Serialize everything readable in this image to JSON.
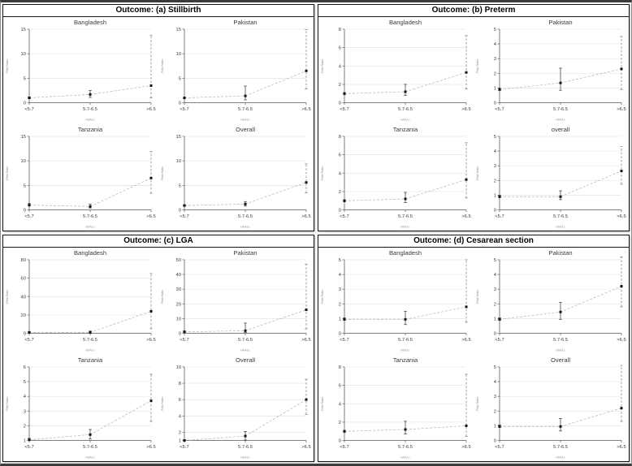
{
  "chart_data": {
    "type": "line",
    "xlabel": "HbA1c",
    "ylabel": "Risk Ratio",
    "x_categories": [
      "<5.7",
      "5.7-6.5",
      ">6.5"
    ],
    "legend": "none",
    "grid": "horizontal",
    "colors": {
      "grid": "#e4e4e4",
      "axis": "#6e6e6e",
      "text": "#3a3a3a",
      "title": "#3a3a3a",
      "muted": "#8f8f8f",
      "connector": "#b3b3b3",
      "marker": "#141414",
      "ci": "#4a4a4a",
      "ci_dashed": "#858585"
    },
    "panels": [
      {
        "title": "Outcome: (a) Stillbirth",
        "subplots": [
          {
            "title": "Bangladesh",
            "yticks": [
              0,
              5,
              10,
              15
            ],
            "points": [
              {
                "x": "<5.7",
                "y": 1.0,
                "lo": 0.9,
                "hi": 1.2,
                "ci": "solid"
              },
              {
                "x": "5.7-6.5",
                "y": 1.7,
                "lo": 1.1,
                "hi": 2.5,
                "ci": "solid"
              },
              {
                "x": ">6.5",
                "y": 3.5,
                "lo": 1.0,
                "hi": 13.7,
                "ci": "dashed"
              }
            ]
          },
          {
            "title": "Pakistan",
            "yticks": [
              0,
              5,
              10,
              15
            ],
            "points": [
              {
                "x": "<5.7",
                "y": 1.0,
                "lo": 0.9,
                "hi": 1.1,
                "ci": "solid"
              },
              {
                "x": "5.7-6.5",
                "y": 1.4,
                "lo": 0.6,
                "hi": 3.4,
                "ci": "solid"
              },
              {
                "x": ">6.5",
                "y": 6.5,
                "lo": 2.8,
                "hi": 14.9,
                "ci": "dashed"
              }
            ]
          },
          {
            "title": "Tanzania",
            "yticks": [
              0,
              5,
              10,
              15
            ],
            "points": [
              {
                "x": "<5.7",
                "y": 1.0,
                "lo": 0.8,
                "hi": 1.3,
                "ci": "solid"
              },
              {
                "x": "5.7-6.5",
                "y": 0.7,
                "lo": 0.4,
                "hi": 1.2,
                "ci": "solid"
              },
              {
                "x": ">6.5",
                "y": 6.5,
                "lo": 3.4,
                "hi": 11.9,
                "ci": "dashed"
              }
            ]
          },
          {
            "title": "Overall",
            "yticks": [
              0,
              5,
              10,
              15
            ],
            "points": [
              {
                "x": "<5.7",
                "y": 0.9,
                "lo": 0.8,
                "hi": 1.0,
                "ci": "solid"
              },
              {
                "x": "5.7-6.5",
                "y": 1.2,
                "lo": 0.8,
                "hi": 1.7,
                "ci": "solid"
              },
              {
                "x": ">6.5",
                "y": 5.6,
                "lo": 3.5,
                "hi": 9.4,
                "ci": "dashed"
              }
            ]
          }
        ]
      },
      {
        "title": "Outcome: (b) Preterm",
        "subplots": [
          {
            "title": "Bangladesh",
            "yticks": [
              0,
              2,
              4,
              6,
              8
            ],
            "points": [
              {
                "x": "<5.7",
                "y": 1.0,
                "lo": 0.9,
                "hi": 1.1,
                "ci": "solid"
              },
              {
                "x": "5.7-6.5",
                "y": 1.2,
                "lo": 0.8,
                "hi": 2.0,
                "ci": "solid"
              },
              {
                "x": ">6.5",
                "y": 3.3,
                "lo": 1.5,
                "hi": 7.3,
                "ci": "dashed"
              }
            ]
          },
          {
            "title": "Pakistan",
            "yticks": [
              0,
              1,
              2,
              3,
              4,
              5
            ],
            "points": [
              {
                "x": "<5.7",
                "y": 0.9,
                "lo": 0.85,
                "hi": 1.0,
                "ci": "solid"
              },
              {
                "x": "5.7-6.5",
                "y": 1.35,
                "lo": 0.85,
                "hi": 2.35,
                "ci": "solid"
              },
              {
                "x": ">6.5",
                "y": 2.3,
                "lo": 0.9,
                "hi": 4.5,
                "ci": "dashed"
              }
            ]
          },
          {
            "title": "Tanzania",
            "yticks": [
              0,
              2,
              4,
              6,
              8
            ],
            "points": [
              {
                "x": "<5.7",
                "y": 1.0,
                "lo": 0.9,
                "hi": 1.1,
                "ci": "solid"
              },
              {
                "x": "5.7-6.5",
                "y": 1.2,
                "lo": 0.8,
                "hi": 1.9,
                "ci": "solid"
              },
              {
                "x": ">6.5",
                "y": 3.3,
                "lo": 1.3,
                "hi": 7.3,
                "ci": "dashed"
              }
            ]
          },
          {
            "title": "overall",
            "yticks": [
              0,
              1,
              2,
              3,
              4,
              5
            ],
            "points": [
              {
                "x": "<5.7",
                "y": 0.9,
                "lo": 0.85,
                "hi": 1.0,
                "ci": "solid"
              },
              {
                "x": "5.7-6.5",
                "y": 0.9,
                "lo": 0.7,
                "hi": 1.3,
                "ci": "solid"
              },
              {
                "x": ">6.5",
                "y": 2.65,
                "lo": 1.75,
                "hi": 4.3,
                "ci": "dashed"
              }
            ]
          }
        ]
      },
      {
        "title": "Outcome: (c) LGA",
        "subplots": [
          {
            "title": "Bangladesh",
            "yticks": [
              0,
              20,
              40,
              60,
              80
            ],
            "points": [
              {
                "x": "<5.7",
                "y": 1.0,
                "lo": 0.5,
                "hi": 2.0,
                "ci": "solid"
              },
              {
                "x": "5.7-6.5",
                "y": 1.0,
                "lo": 0.4,
                "hi": 2.5,
                "ci": "solid"
              },
              {
                "x": ">6.5",
                "y": 24.0,
                "lo": 5.0,
                "hi": 65.0,
                "ci": "dashed"
              }
            ]
          },
          {
            "title": "Pakistan",
            "yticks": [
              0,
              10,
              20,
              30,
              40,
              50
            ],
            "points": [
              {
                "x": "<5.7",
                "y": 1.0,
                "lo": 0.6,
                "hi": 1.6,
                "ci": "solid"
              },
              {
                "x": "5.7-6.5",
                "y": 1.8,
                "lo": 0.5,
                "hi": 7.0,
                "ci": "solid"
              },
              {
                "x": ">6.5",
                "y": 16.0,
                "lo": 3.0,
                "hi": 47.0,
                "ci": "dashed"
              }
            ]
          },
          {
            "title": "Tanzania",
            "yticks": [
              1,
              2,
              3,
              4,
              5,
              6
            ],
            "points": [
              {
                "x": "<5.7",
                "y": 1.05,
                "lo": 1.0,
                "hi": 1.15,
                "ci": "solid"
              },
              {
                "x": "5.7-6.5",
                "y": 1.4,
                "lo": 1.1,
                "hi": 1.75,
                "ci": "solid"
              },
              {
                "x": ">6.5",
                "y": 3.7,
                "lo": 2.3,
                "hi": 5.5,
                "ci": "dashed"
              }
            ]
          },
          {
            "title": "Overall",
            "yticks": [
              1,
              2,
              4,
              6,
              8,
              10
            ],
            "points": [
              {
                "x": "<5.7",
                "y": 1.0,
                "lo": 1.0,
                "hi": 1.1,
                "ci": "solid"
              },
              {
                "x": "5.7-6.5",
                "y": 1.55,
                "lo": 1.05,
                "hi": 2.1,
                "ci": "solid"
              },
              {
                "x": ">6.5",
                "y": 6.0,
                "lo": 4.2,
                "hi": 8.5,
                "ci": "dashed"
              }
            ]
          }
        ]
      },
      {
        "title": "Outcome: (d) Cesarean section",
        "subplots": [
          {
            "title": "Bangladesh",
            "yticks": [
              0,
              1,
              2,
              3,
              4,
              5
            ],
            "points": [
              {
                "x": "<5.7",
                "y": 0.95,
                "lo": 0.9,
                "hi": 1.05,
                "ci": "solid"
              },
              {
                "x": "5.7-6.5",
                "y": 0.95,
                "lo": 0.6,
                "hi": 1.5,
                "ci": "solid"
              },
              {
                "x": ">6.5",
                "y": 1.8,
                "lo": 0.75,
                "hi": 5.0,
                "ci": "dashed"
              }
            ]
          },
          {
            "title": "Pakistan",
            "yticks": [
              0,
              1,
              2,
              3,
              4,
              5
            ],
            "points": [
              {
                "x": "<5.7",
                "y": 0.95,
                "lo": 0.9,
                "hi": 1.05,
                "ci": "solid"
              },
              {
                "x": "5.7-6.5",
                "y": 1.45,
                "lo": 0.95,
                "hi": 2.1,
                "ci": "solid"
              },
              {
                "x": ">6.5",
                "y": 3.2,
                "lo": 1.8,
                "hi": 5.2,
                "ci": "dashed"
              }
            ]
          },
          {
            "title": "Tanzania",
            "yticks": [
              0,
              2,
              4,
              6,
              8
            ],
            "points": [
              {
                "x": "<5.7",
                "y": 1.0,
                "lo": 0.9,
                "hi": 1.1,
                "ci": "solid"
              },
              {
                "x": "5.7-6.5",
                "y": 1.2,
                "lo": 0.7,
                "hi": 2.1,
                "ci": "solid"
              },
              {
                "x": ">6.5",
                "y": 1.6,
                "lo": 0.45,
                "hi": 7.2,
                "ci": "dashed"
              }
            ]
          },
          {
            "title": "Overall",
            "yticks": [
              0,
              1,
              2,
              3,
              4,
              5
            ],
            "points": [
              {
                "x": "<5.7",
                "y": 0.95,
                "lo": 0.9,
                "hi": 1.05,
                "ci": "solid"
              },
              {
                "x": "5.7-6.5",
                "y": 0.95,
                "lo": 0.65,
                "hi": 1.5,
                "ci": "solid"
              },
              {
                "x": ">6.5",
                "y": 2.2,
                "lo": 1.3,
                "hi": 5.1,
                "ci": "dashed"
              }
            ]
          }
        ]
      }
    ]
  }
}
